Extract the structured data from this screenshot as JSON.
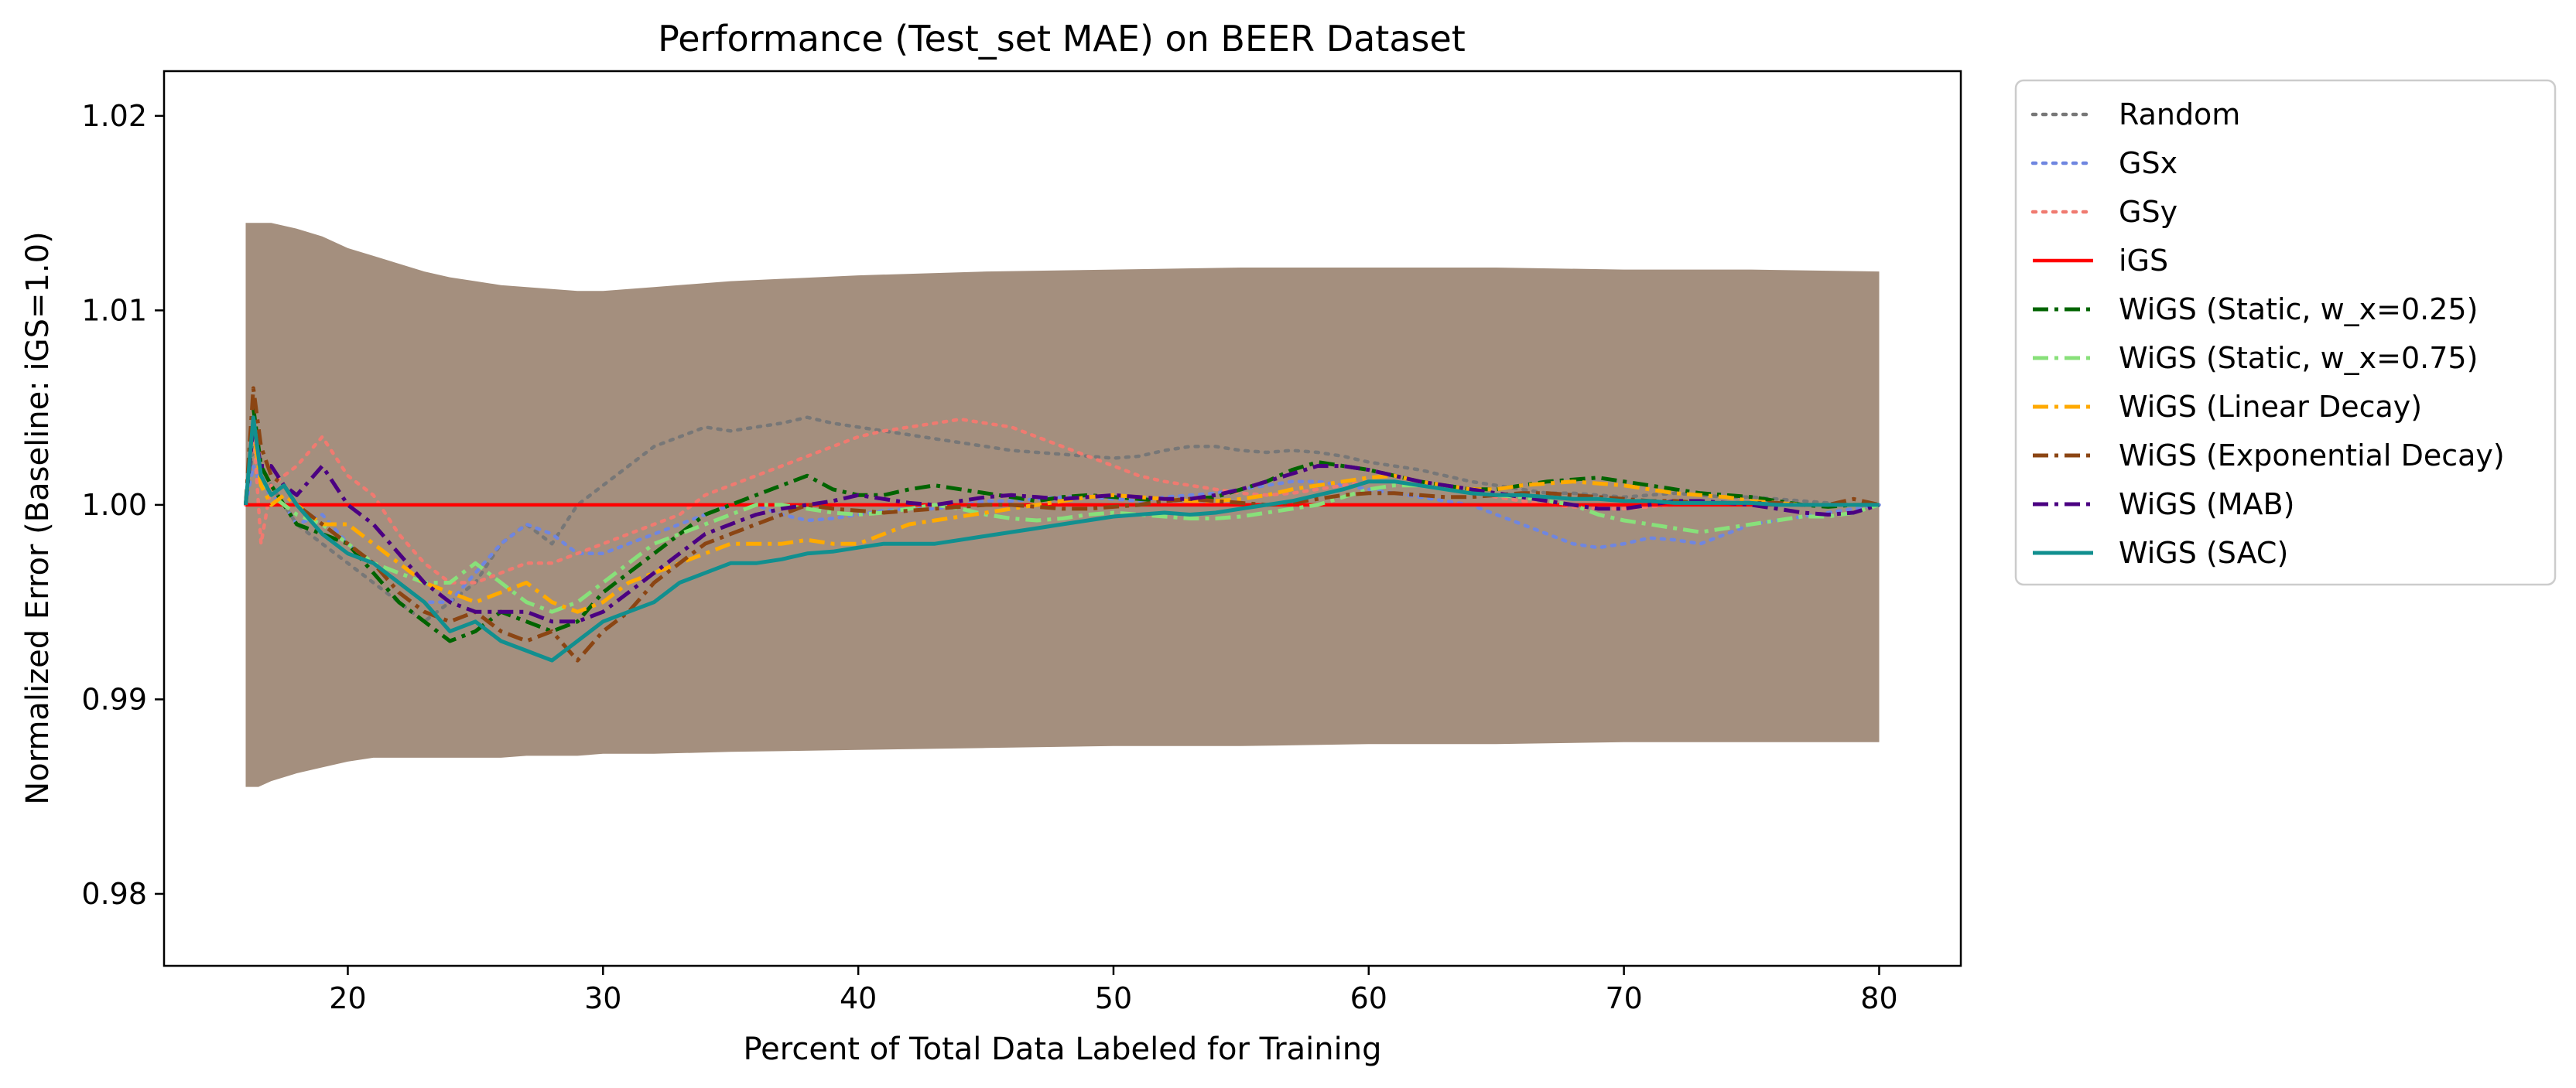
{
  "chart_data": {
    "type": "line",
    "title": "Performance (Test_set MAE) on BEER Dataset",
    "xlabel": "Percent of Total Data Labeled for Training",
    "ylabel": "Normalized Error (Baseline: iGS=1.0)",
    "xlim": [
      12.8,
      83.2
    ],
    "ylim": [
      0.9763,
      1.0223
    ],
    "xticks": [
      20,
      30,
      40,
      50,
      60,
      70,
      80
    ],
    "xtick_labels": [
      "20",
      "30",
      "40",
      "50",
      "60",
      "70",
      "80"
    ],
    "yticks": [
      0.98,
      0.99,
      1.0,
      1.01,
      1.02
    ],
    "ytick_labels": [
      "0.98",
      "0.99",
      "1.00",
      "1.01",
      "1.02"
    ],
    "grid": false,
    "legend_position": "outside-right",
    "band": {
      "color": "#8b6f5a",
      "x": [
        16,
        16.5,
        17,
        18,
        19,
        20,
        21,
        22,
        23,
        24,
        25,
        26,
        27,
        28,
        29,
        30,
        32,
        35,
        40,
        45,
        50,
        55,
        60,
        65,
        70,
        75,
        80
      ],
      "upper": [
        1.0145,
        1.0145,
        1.0145,
        1.0142,
        1.0138,
        1.0132,
        1.0128,
        1.0124,
        1.012,
        1.0117,
        1.0115,
        1.0113,
        1.0112,
        1.0111,
        1.011,
        1.011,
        1.0112,
        1.0115,
        1.0118,
        1.012,
        1.0121,
        1.0122,
        1.0122,
        1.0122,
        1.0121,
        1.0121,
        1.012
      ],
      "lower": [
        0.9855,
        0.9855,
        0.9858,
        0.9862,
        0.9865,
        0.9868,
        0.987,
        0.987,
        0.987,
        0.987,
        0.987,
        0.987,
        0.9871,
        0.9871,
        0.9871,
        0.9872,
        0.9872,
        0.9873,
        0.9874,
        0.9875,
        0.9876,
        0.9876,
        0.9877,
        0.9877,
        0.9878,
        0.9878,
        0.9878
      ]
    },
    "x": [
      16,
      16.3,
      16.6,
      17,
      17.5,
      18,
      19,
      20,
      21,
      22,
      23,
      24,
      25,
      26,
      27,
      28,
      29,
      30,
      31,
      32,
      33,
      34,
      35,
      36,
      37,
      38,
      39,
      40,
      41,
      42,
      43,
      44,
      45,
      46,
      47,
      48,
      49,
      50,
      51,
      52,
      53,
      54,
      55,
      56,
      57,
      58,
      59,
      60,
      61,
      62,
      63,
      64,
      65,
      66,
      67,
      68,
      69,
      70,
      71,
      72,
      73,
      74,
      75,
      76,
      77,
      78,
      79,
      80
    ],
    "series": [
      {
        "name": "Random",
        "color": "#777777",
        "dash": "dotted",
        "width": 4.5,
        "values": [
          1.0,
          1.003,
          1.002,
          1.001,
          1.0,
          0.999,
          0.998,
          0.997,
          0.996,
          0.995,
          0.994,
          0.995,
          0.996,
          0.998,
          0.999,
          0.998,
          1.0,
          1.001,
          1.002,
          1.003,
          1.0035,
          1.004,
          1.0038,
          1.004,
          1.0042,
          1.0045,
          1.0042,
          1.004,
          1.0038,
          1.0036,
          1.0034,
          1.0032,
          1.003,
          1.0028,
          1.0027,
          1.0026,
          1.0025,
          1.0024,
          1.0025,
          1.0028,
          1.003,
          1.003,
          1.0028,
          1.0027,
          1.0028,
          1.0027,
          1.0025,
          1.0022,
          1.002,
          1.0018,
          1.0015,
          1.0012,
          1.001,
          1.0008,
          1.0006,
          1.0006,
          1.0005,
          1.0004,
          1.0005,
          1.0006,
          1.0005,
          1.0004,
          1.0004,
          1.0003,
          1.0002,
          1.0001,
          1.0,
          1.0
        ]
      },
      {
        "name": "GSx",
        "color": "#6f86e0",
        "dash": "dotted",
        "width": 4.5,
        "values": [
          1.0,
          1.002,
          1.001,
          1.0005,
          1.0,
          0.999,
          0.9995,
          0.998,
          0.997,
          0.996,
          0.995,
          0.995,
          0.9965,
          0.998,
          0.999,
          0.9985,
          0.9975,
          0.9975,
          0.998,
          0.9985,
          0.999,
          0.9995,
          1.0,
          1.0,
          0.9995,
          0.9992,
          0.9993,
          0.9995,
          0.9997,
          0.9998,
          0.9998,
          1.0,
          1.0002,
          1.0002,
          1.0003,
          1.0004,
          1.0004,
          1.0003,
          1.0002,
          1.0004,
          1.0005,
          1.0006,
          1.0008,
          1.001,
          1.0012,
          1.0012,
          1.001,
          1.0008,
          1.0006,
          1.0004,
          1.0002,
          1.0,
          0.9995,
          0.999,
          0.9985,
          0.998,
          0.9978,
          0.998,
          0.9983,
          0.9982,
          0.998,
          0.9985,
          0.999,
          0.9992,
          0.9994,
          0.9996,
          0.9998,
          1.0
        ]
      },
      {
        "name": "GSy",
        "color": "#f07a70",
        "dash": "dotted",
        "width": 4.5,
        "values": [
          1.0,
          1.004,
          0.998,
          1.001,
          1.0015,
          1.002,
          1.0035,
          1.0015,
          1.0005,
          0.9985,
          0.997,
          0.996,
          0.996,
          0.9965,
          0.997,
          0.997,
          0.9975,
          0.998,
          0.9985,
          0.999,
          0.9995,
          1.0005,
          1.001,
          1.0015,
          1.002,
          1.0025,
          1.003,
          1.0035,
          1.0038,
          1.004,
          1.0042,
          1.0044,
          1.0042,
          1.004,
          1.0035,
          1.003,
          1.0025,
          1.002,
          1.0015,
          1.0012,
          1.001,
          1.0008,
          1.0006,
          1.0005,
          1.0006,
          1.0008,
          1.001,
          1.0012,
          1.0012,
          1.001,
          1.0008,
          1.0006,
          1.0004,
          1.0002,
          1.0,
          0.9999,
          0.9998,
          0.9998,
          0.9999,
          1.0,
          1.0001,
          1.0001,
          1.0,
          1.0,
          1.0,
          1.0,
          1.0,
          1.0
        ]
      },
      {
        "name": "iGS",
        "color": "#ff0000",
        "dash": "solid",
        "width": 4.5,
        "values": [
          1.0,
          1.0,
          1.0,
          1.0,
          1.0,
          1.0,
          1.0,
          1.0,
          1.0,
          1.0,
          1.0,
          1.0,
          1.0,
          1.0,
          1.0,
          1.0,
          1.0,
          1.0,
          1.0,
          1.0,
          1.0,
          1.0,
          1.0,
          1.0,
          1.0,
          1.0,
          1.0,
          1.0,
          1.0,
          1.0,
          1.0,
          1.0,
          1.0,
          1.0,
          1.0,
          1.0,
          1.0,
          1.0,
          1.0,
          1.0,
          1.0,
          1.0,
          1.0,
          1.0,
          1.0,
          1.0,
          1.0,
          1.0,
          1.0,
          1.0,
          1.0,
          1.0,
          1.0,
          1.0,
          1.0,
          1.0,
          1.0,
          1.0,
          1.0,
          1.0,
          1.0,
          1.0,
          1.0,
          1.0,
          1.0,
          1.0,
          1.0,
          1.0
        ]
      },
      {
        "name": "WiGS (Static, w_x=0.25)",
        "color": "#006400",
        "dash": "dashdot",
        "width": 5,
        "values": [
          1.0,
          1.005,
          1.002,
          1.001,
          1.0,
          0.999,
          0.9985,
          0.998,
          0.9965,
          0.995,
          0.994,
          0.993,
          0.9935,
          0.9945,
          0.994,
          0.9935,
          0.994,
          0.9955,
          0.9965,
          0.9975,
          0.9985,
          0.9995,
          1.0,
          1.0005,
          1.001,
          1.0015,
          1.0008,
          1.0005,
          1.0005,
          1.0008,
          1.001,
          1.0008,
          1.0006,
          1.0004,
          1.0002,
          1.0004,
          1.0005,
          1.0004,
          1.0003,
          1.0002,
          1.0003,
          1.0004,
          1.0008,
          1.0012,
          1.0018,
          1.0022,
          1.002,
          1.0018,
          1.0015,
          1.0012,
          1.001,
          1.0008,
          1.0008,
          1.001,
          1.0012,
          1.0013,
          1.0014,
          1.0012,
          1.001,
          1.0008,
          1.0006,
          1.0005,
          1.0004,
          1.0002,
          1.0,
          0.9999,
          1.0,
          1.0
        ]
      },
      {
        "name": "WiGS (Static, w_x=0.75)",
        "color": "#88e07a",
        "dash": "dashdot",
        "width": 5,
        "values": [
          1.0,
          1.004,
          1.001,
          1.0005,
          1.0,
          0.9995,
          0.999,
          0.998,
          0.997,
          0.9965,
          0.996,
          0.996,
          0.997,
          0.996,
          0.995,
          0.9945,
          0.995,
          0.996,
          0.997,
          0.998,
          0.9985,
          0.999,
          0.9995,
          1.0,
          1.0,
          0.9998,
          0.9996,
          0.9995,
          0.9996,
          0.9998,
          1.0,
          0.9998,
          0.9995,
          0.9993,
          0.9992,
          0.9993,
          0.9995,
          0.9996,
          0.9995,
          0.9994,
          0.9993,
          0.9993,
          0.9994,
          0.9996,
          0.9998,
          1.0,
          1.0004,
          1.0008,
          1.001,
          1.001,
          1.0008,
          1.0006,
          1.0005,
          1.0004,
          1.0002,
          1.0,
          0.9995,
          0.9992,
          0.999,
          0.9988,
          0.9986,
          0.9988,
          0.999,
          0.9992,
          0.9994,
          0.9994,
          0.9996,
          1.0
        ]
      },
      {
        "name": "WiGS (Linear Decay)",
        "color": "#ffaa00",
        "dash": "dashdot",
        "width": 5,
        "values": [
          1.0,
          1.004,
          1.001,
          1.0,
          1.0005,
          1.0,
          0.999,
          0.999,
          0.998,
          0.997,
          0.996,
          0.9955,
          0.995,
          0.9955,
          0.996,
          0.995,
          0.9945,
          0.995,
          0.996,
          0.9965,
          0.997,
          0.9975,
          0.998,
          0.998,
          0.998,
          0.9982,
          0.998,
          0.998,
          0.9985,
          0.999,
          0.9992,
          0.9994,
          0.9996,
          0.9998,
          1.0,
          1.0002,
          1.0004,
          1.0005,
          1.0004,
          1.0003,
          1.0002,
          1.0002,
          1.0003,
          1.0005,
          1.0008,
          1.001,
          1.0012,
          1.0014,
          1.0015,
          1.0012,
          1.001,
          1.0008,
          1.0008,
          1.001,
          1.0011,
          1.0012,
          1.0011,
          1.001,
          1.0008,
          1.0006,
          1.0005,
          1.0004,
          1.0002,
          1.0001,
          1.0,
          1.0,
          1.0,
          1.0
        ]
      },
      {
        "name": "WiGS (Exponential Decay)",
        "color": "#8b4513",
        "dash": "dashdot",
        "width": 5,
        "values": [
          1.0,
          1.006,
          1.003,
          1.0015,
          1.001,
          1.0,
          0.999,
          0.998,
          0.997,
          0.9955,
          0.9945,
          0.994,
          0.9945,
          0.9935,
          0.993,
          0.9935,
          0.992,
          0.9935,
          0.9945,
          0.996,
          0.997,
          0.998,
          0.9985,
          0.999,
          0.9995,
          1.0,
          0.9998,
          0.9997,
          0.9996,
          0.9997,
          0.9998,
          0.9999,
          1.0,
          1.0,
          0.9999,
          0.9998,
          0.9998,
          0.9999,
          1.0,
          1.0002,
          1.0003,
          1.0002,
          1.0001,
          1.0,
          1.0001,
          1.0003,
          1.0005,
          1.0006,
          1.0006,
          1.0005,
          1.0004,
          1.0004,
          1.0005,
          1.0006,
          1.0006,
          1.0005,
          1.0004,
          1.0003,
          1.0002,
          1.0002,
          1.0001,
          1.0001,
          1.0001,
          1.0001,
          1.0,
          1.0,
          1.0003,
          1.0
        ]
      },
      {
        "name": "WiGS (MAB)",
        "color": "#4b0082",
        "dash": "dashdot",
        "width": 5,
        "values": [
          1.0,
          1.004,
          1.002,
          1.002,
          1.001,
          1.0005,
          1.002,
          1.0,
          0.999,
          0.9975,
          0.996,
          0.995,
          0.9945,
          0.9945,
          0.9945,
          0.994,
          0.994,
          0.9945,
          0.9955,
          0.9965,
          0.9975,
          0.9985,
          0.999,
          0.9995,
          0.9998,
          1.0,
          1.0002,
          1.0005,
          1.0003,
          1.0001,
          1.0,
          1.0002,
          1.0004,
          1.0005,
          1.0004,
          1.0003,
          1.0004,
          1.0005,
          1.0004,
          1.0003,
          1.0003,
          1.0005,
          1.0008,
          1.0012,
          1.0016,
          1.002,
          1.002,
          1.0018,
          1.0015,
          1.0012,
          1.001,
          1.0008,
          1.0006,
          1.0004,
          1.0002,
          1.0,
          0.9998,
          0.9998,
          1.0,
          1.0002,
          1.0002,
          1.0001,
          1.0,
          0.9998,
          0.9996,
          0.9995,
          0.9996,
          1.0
        ]
      },
      {
        "name": "WiGS (SAC)",
        "color": "#118f8f",
        "dash": "solid",
        "width": 5,
        "values": [
          1.0,
          1.0045,
          1.0015,
          1.0005,
          1.001,
          1.0,
          0.9985,
          0.9975,
          0.997,
          0.996,
          0.995,
          0.9935,
          0.994,
          0.993,
          0.9925,
          0.992,
          0.993,
          0.994,
          0.9945,
          0.995,
          0.996,
          0.9965,
          0.997,
          0.997,
          0.9972,
          0.9975,
          0.9976,
          0.9978,
          0.998,
          0.998,
          0.998,
          0.9982,
          0.9984,
          0.9986,
          0.9988,
          0.999,
          0.9992,
          0.9994,
          0.9995,
          0.9996,
          0.9995,
          0.9996,
          0.9998,
          1.0,
          1.0002,
          1.0005,
          1.0008,
          1.0012,
          1.0012,
          1.001,
          1.0008,
          1.0006,
          1.0005,
          1.0005,
          1.0004,
          1.0003,
          1.0003,
          1.0002,
          1.0002,
          1.0001,
          1.0001,
          1.0001,
          1.0001,
          1.0,
          1.0,
          1.0,
          1.0,
          1.0
        ]
      }
    ]
  }
}
